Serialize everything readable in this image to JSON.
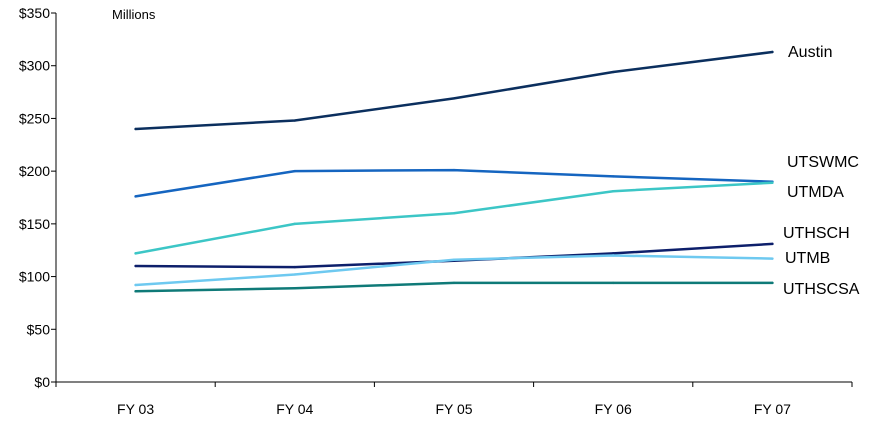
{
  "chart_data": {
    "type": "line",
    "unit_label": "Millions",
    "categories": [
      "FY 03",
      "FY 04",
      "FY 05",
      "FY 06",
      "FY 07"
    ],
    "ylim": [
      0,
      350
    ],
    "yticks": [
      0,
      50,
      100,
      150,
      200,
      250,
      300,
      350
    ],
    "ytick_labels": [
      "$0",
      "$50",
      "$100",
      "$150",
      "$200",
      "$250",
      "$300",
      "$350"
    ],
    "grid": false,
    "legend": "none (series labeled at line ends)",
    "series": [
      {
        "name": "Austin",
        "color": "#0b2f5e",
        "values": [
          240,
          248,
          269,
          294,
          313
        ]
      },
      {
        "name": "UTSWMC",
        "color": "#1565c0",
        "values": [
          176,
          200,
          201,
          195,
          190
        ]
      },
      {
        "name": "UTMDA",
        "color": "#3cc6c6",
        "values": [
          122,
          150,
          160,
          181,
          189
        ]
      },
      {
        "name": "UTHSCH",
        "color": "#0d1f6b",
        "values": [
          110,
          109,
          115,
          122,
          131
        ]
      },
      {
        "name": "UTMB",
        "color": "#6ec9f0",
        "values": [
          92,
          102,
          116,
          120,
          117
        ]
      },
      {
        "name": "UTHSCSA",
        "color": "#0f7a78",
        "values": [
          86,
          89,
          94,
          94,
          94
        ]
      }
    ]
  }
}
